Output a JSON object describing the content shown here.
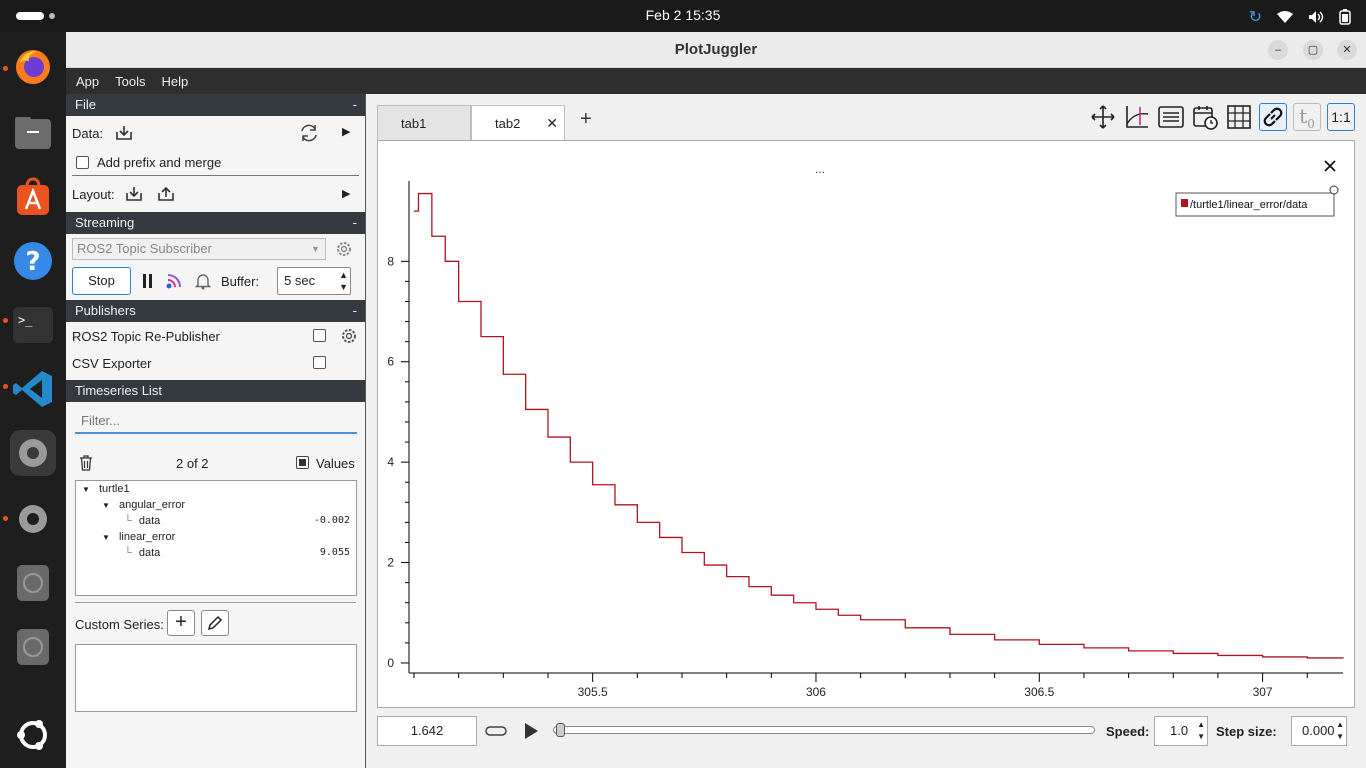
{
  "system": {
    "clock": "Feb 2  15:35"
  },
  "window": {
    "title": "PlotJuggler"
  },
  "menu": {
    "app": "App",
    "tools": "Tools",
    "help": "Help"
  },
  "file_section": {
    "header": "File",
    "collapse": "-",
    "data_label": "Data:",
    "prefix_label": "Add prefix and merge",
    "layout_label": "Layout:"
  },
  "streaming": {
    "header": "Streaming",
    "collapse": "-",
    "source": "ROS2 Topic Subscriber",
    "stop_label": "Stop",
    "buffer_label": "Buffer:",
    "buffer_value": "5 sec"
  },
  "publishers": {
    "header": "Publishers",
    "collapse": "-",
    "items": [
      "ROS2 Topic Re-Publisher",
      "CSV Exporter"
    ]
  },
  "timeseries": {
    "header": "Timeseries List",
    "filter_placeholder": "Filter...",
    "count": "2 of 2",
    "values_label": "Values",
    "tree": {
      "root": "turtle1",
      "n1": "angular_error",
      "n1_leaf": "data",
      "n1_value": "-0.002",
      "n2": "linear_error",
      "n2_leaf": "data",
      "n2_value": "9.055"
    },
    "custom_label": "Custom Series:"
  },
  "tabs": {
    "tab1": "tab1",
    "tab2": "tab2",
    "add": "+"
  },
  "plot": {
    "title": "...",
    "legend": "/turtle1/linear_error/data",
    "series_color": "#b0141c"
  },
  "chart_data": {
    "type": "line",
    "title": "",
    "xlabel": "",
    "ylabel": "",
    "xlim": [
      305.1,
      307.18
    ],
    "ylim": [
      -0.2,
      9.6
    ],
    "x_ticks": [
      305.5,
      306,
      306.5,
      307
    ],
    "x_tick_labels": [
      "305.5",
      "306",
      "306.5",
      "307"
    ],
    "y_ticks": [
      0,
      2,
      4,
      6,
      8
    ],
    "y_tick_labels": [
      "0",
      "2",
      "4",
      "6",
      "8"
    ],
    "series": [
      {
        "name": "/turtle1/linear_error/data",
        "x": [
          305.1,
          305.11,
          305.135,
          305.14,
          305.17,
          305.2,
          305.25,
          305.3,
          305.35,
          305.4,
          305.45,
          305.5,
          305.55,
          305.6,
          305.65,
          305.7,
          305.75,
          305.8,
          305.85,
          305.9,
          305.95,
          306.0,
          306.05,
          306.1,
          306.2,
          306.3,
          306.4,
          306.5,
          306.6,
          306.7,
          306.8,
          306.9,
          307.0,
          307.1,
          307.18
        ],
        "y": [
          9.0,
          9.35,
          9.35,
          8.5,
          8.0,
          7.2,
          6.5,
          5.75,
          5.05,
          4.5,
          4.0,
          3.55,
          3.15,
          2.8,
          2.5,
          2.2,
          1.95,
          1.72,
          1.52,
          1.35,
          1.2,
          1.07,
          0.95,
          0.86,
          0.7,
          0.57,
          0.46,
          0.37,
          0.3,
          0.24,
          0.19,
          0.15,
          0.12,
          0.1,
          0.09
        ]
      }
    ],
    "legend_position": "top-right",
    "grid": false
  },
  "playback": {
    "time": "1.642",
    "progress": 0.0,
    "speed_label": "Speed:",
    "speed": "1.0",
    "step_label": "Step size:",
    "step": "0.000"
  },
  "toolbar": {
    "ratio_label": "1:1"
  }
}
